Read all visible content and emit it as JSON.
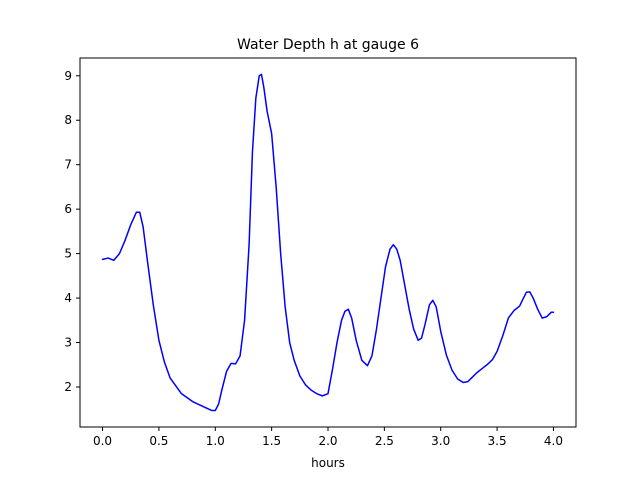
{
  "chart_data": {
    "type": "line",
    "title": "Water Depth h at gauge 6",
    "xlabel": "hours",
    "ylabel": "",
    "xlim": [
      -0.2,
      4.2
    ],
    "ylim": [
      1.1,
      9.4
    ],
    "xticks": [
      0.0,
      0.5,
      1.0,
      1.5,
      2.0,
      2.5,
      3.0,
      3.5,
      4.0
    ],
    "xtick_labels": [
      "0.0",
      "0.5",
      "1.0",
      "1.5",
      "2.0",
      "2.5",
      "3.0",
      "3.5",
      "4.0"
    ],
    "yticks": [
      2,
      3,
      4,
      5,
      6,
      7,
      8,
      9
    ],
    "ytick_labels": [
      "2",
      "3",
      "4",
      "5",
      "6",
      "7",
      "8",
      "9"
    ],
    "grid": false,
    "series": [
      {
        "color": "#0000ff",
        "x": [
          0.0,
          0.05,
          0.1,
          0.15,
          0.2,
          0.25,
          0.3,
          0.33,
          0.36,
          0.4,
          0.45,
          0.5,
          0.55,
          0.6,
          0.7,
          0.8,
          0.9,
          0.97,
          1.0,
          1.03,
          1.06,
          1.1,
          1.14,
          1.18,
          1.22,
          1.26,
          1.3,
          1.33,
          1.36,
          1.39,
          1.41,
          1.43,
          1.46,
          1.5,
          1.54,
          1.58,
          1.62,
          1.66,
          1.7,
          1.75,
          1.8,
          1.85,
          1.9,
          1.95,
          2.0,
          2.04,
          2.08,
          2.12,
          2.15,
          2.18,
          2.21,
          2.25,
          2.3,
          2.35,
          2.39,
          2.43,
          2.47,
          2.51,
          2.55,
          2.58,
          2.61,
          2.64,
          2.68,
          2.72,
          2.76,
          2.8,
          2.83,
          2.86,
          2.9,
          2.93,
          2.96,
          3.0,
          3.05,
          3.1,
          3.15,
          3.2,
          3.24,
          3.28,
          3.32,
          3.37,
          3.42,
          3.46,
          3.5,
          3.55,
          3.6,
          3.65,
          3.7,
          3.73,
          3.76,
          3.79,
          3.82,
          3.86,
          3.9,
          3.94,
          3.98,
          4.0
        ],
        "y": [
          4.87,
          4.9,
          4.85,
          5.0,
          5.3,
          5.65,
          5.93,
          5.93,
          5.6,
          4.8,
          3.85,
          3.05,
          2.55,
          2.2,
          1.85,
          1.67,
          1.55,
          1.47,
          1.47,
          1.62,
          1.95,
          2.35,
          2.53,
          2.52,
          2.7,
          3.5,
          5.2,
          7.3,
          8.5,
          9.0,
          9.03,
          8.75,
          8.2,
          7.7,
          6.5,
          5.0,
          3.8,
          3.0,
          2.6,
          2.25,
          2.05,
          1.93,
          1.85,
          1.8,
          1.85,
          2.4,
          3.0,
          3.5,
          3.7,
          3.75,
          3.55,
          3.05,
          2.6,
          2.48,
          2.7,
          3.3,
          4.0,
          4.7,
          5.1,
          5.2,
          5.1,
          4.85,
          4.3,
          3.75,
          3.3,
          3.05,
          3.1,
          3.4,
          3.85,
          3.95,
          3.8,
          3.25,
          2.72,
          2.38,
          2.18,
          2.1,
          2.12,
          2.22,
          2.32,
          2.42,
          2.52,
          2.62,
          2.8,
          3.15,
          3.55,
          3.72,
          3.82,
          3.98,
          4.13,
          4.14,
          4.0,
          3.75,
          3.55,
          3.58,
          3.68,
          3.68
        ]
      }
    ]
  }
}
